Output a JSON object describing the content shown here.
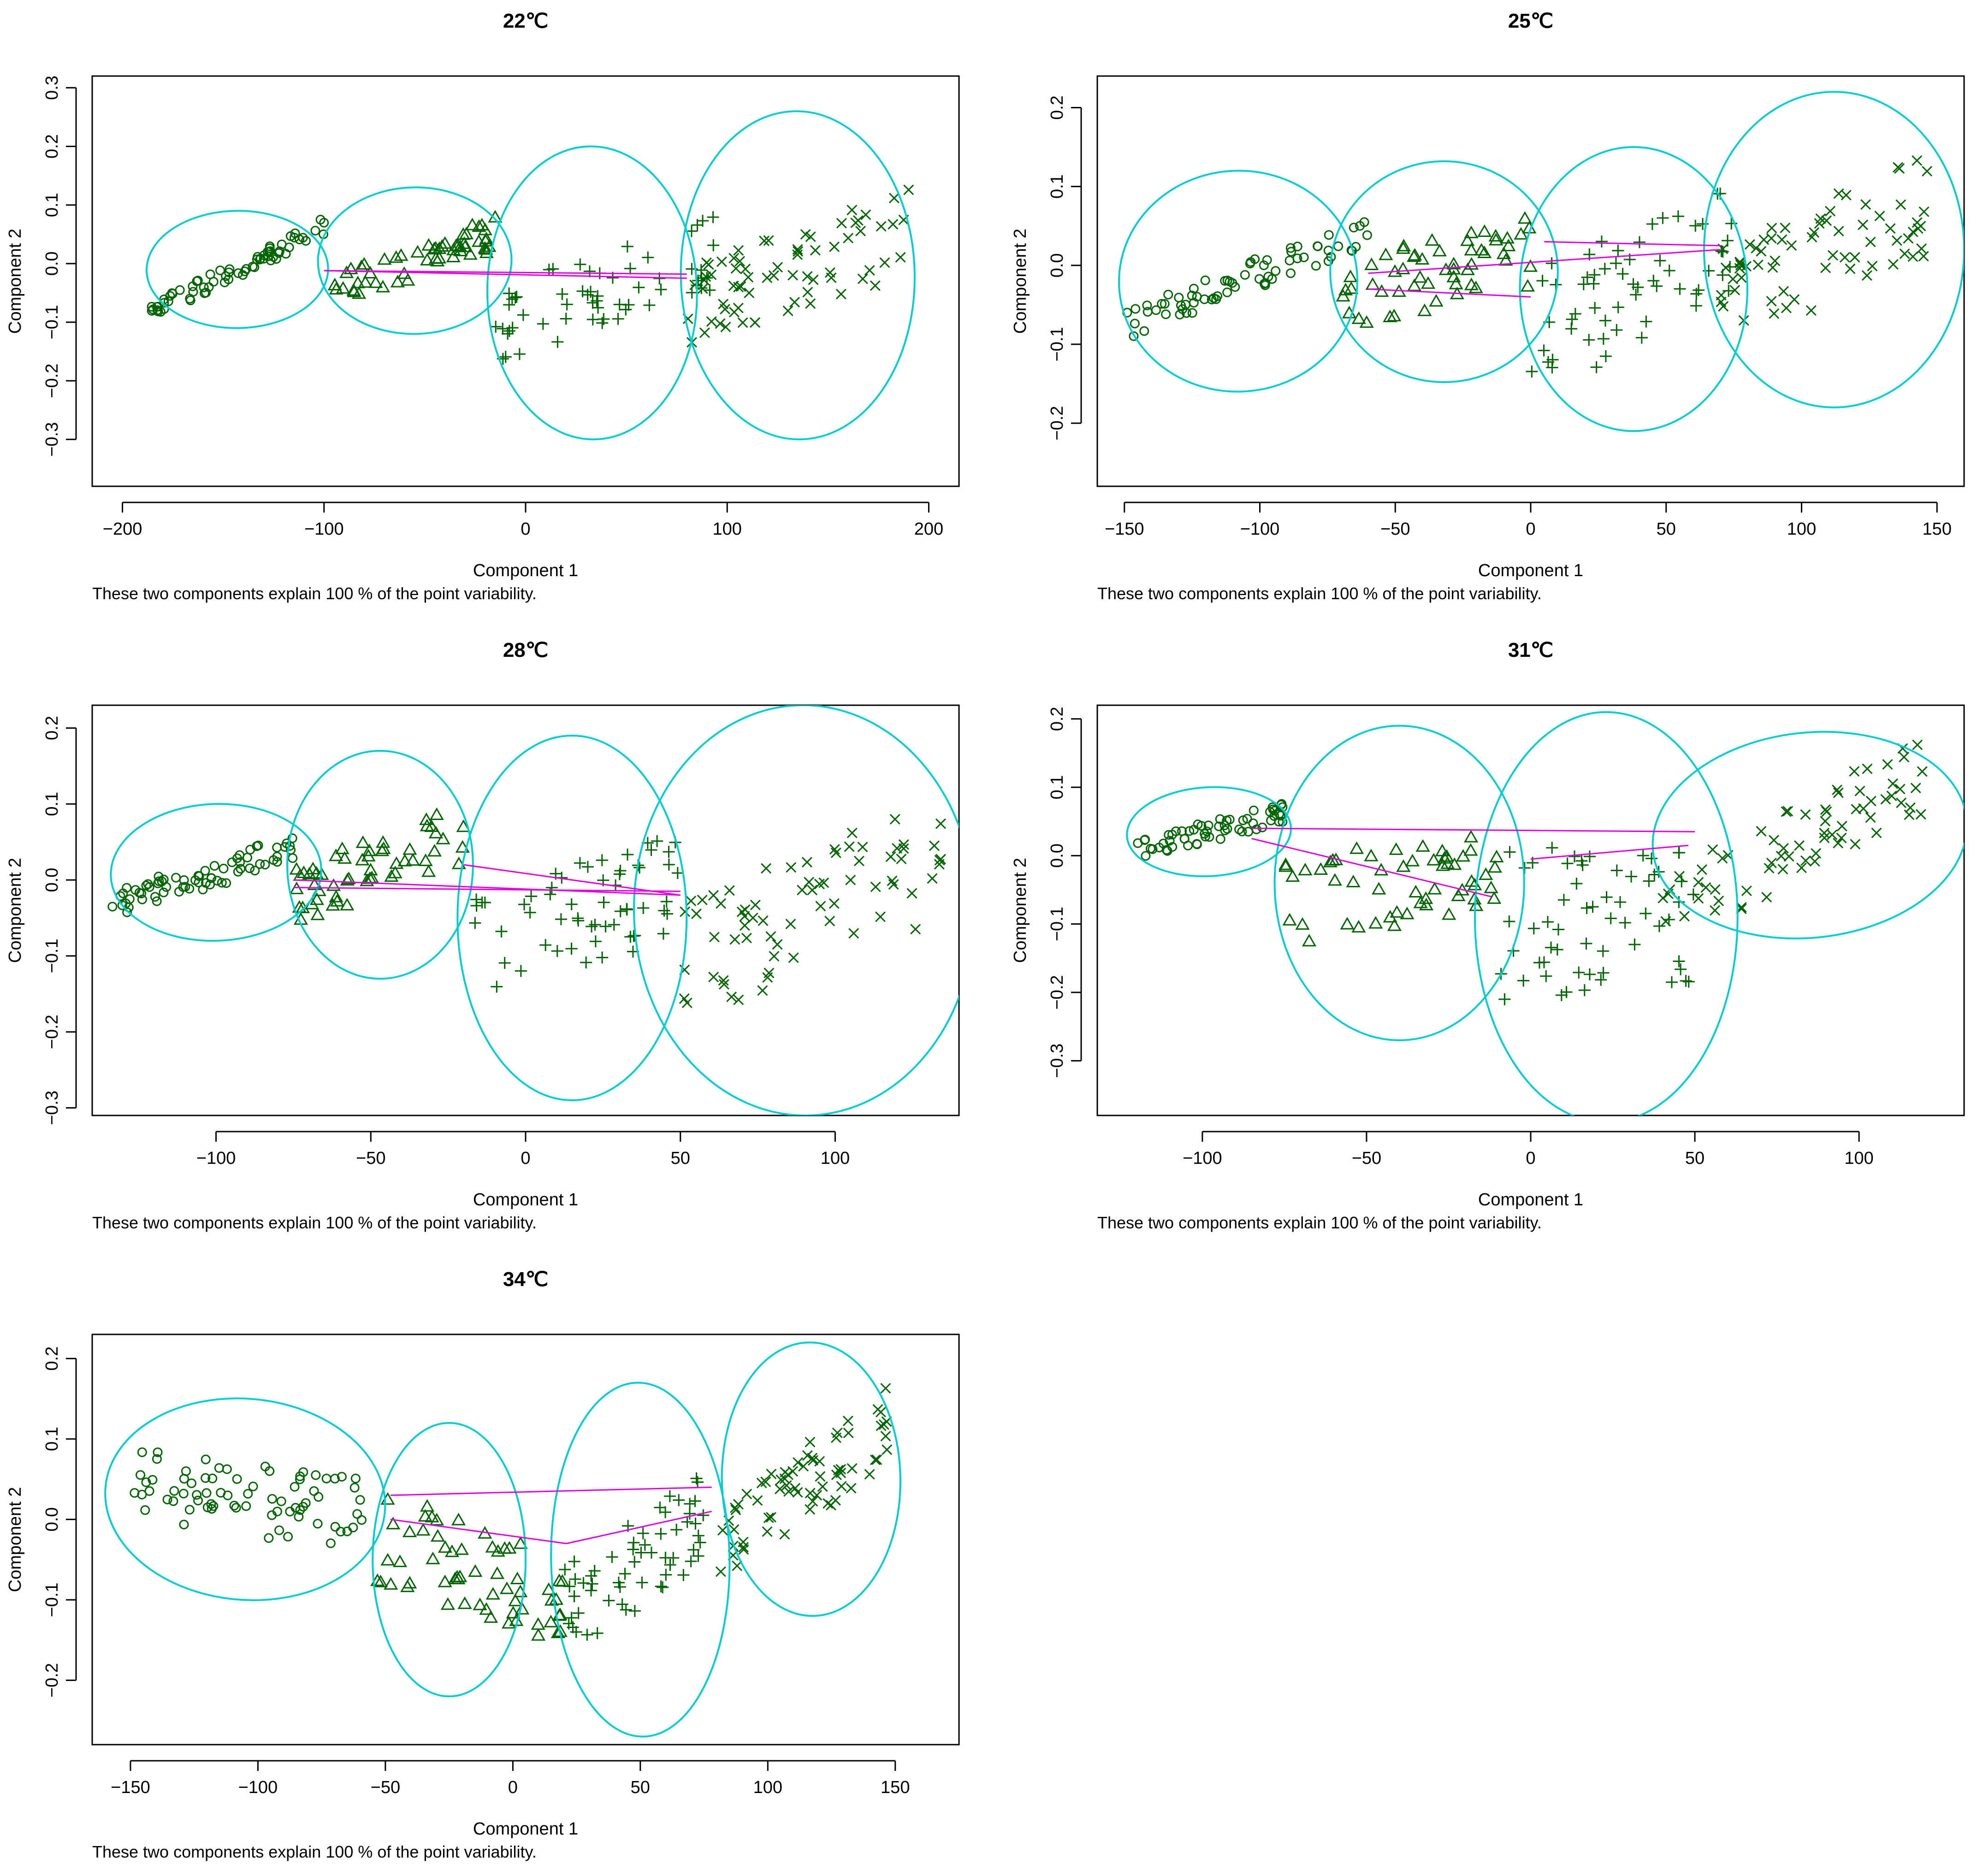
{
  "colors": {
    "points": "#006400",
    "ellipses": "#00CED1",
    "connectors": "#E000E0",
    "axes": "#000000"
  },
  "chart_data": [
    {
      "type": "scatter",
      "title": "22℃",
      "xlabel": "Component 1",
      "ylabel": "Component 2",
      "footnote": "These two components explain 100 % of the point variability.",
      "xlim": [
        -215,
        215
      ],
      "ylim": [
        -0.38,
        0.32
      ],
      "xticks": [
        -200,
        -100,
        0,
        100,
        200
      ],
      "yticks": [
        -0.3,
        -0.2,
        -0.1,
        0.0,
        0.1,
        0.2,
        0.3
      ],
      "clusters": [
        {
          "symbol": "circle",
          "cx": -143,
          "cy": -0.01,
          "rx": 45,
          "ry": 0.1,
          "angle": 0.6,
          "n": 70,
          "xr": [
            -188,
            -100
          ],
          "slope": 0.0017,
          "spread": 0.03
        },
        {
          "symbol": "triangle",
          "cx": -55,
          "cy": 0.005,
          "rx": 48,
          "ry": 0.125,
          "angle": 1,
          "n": 55,
          "xr": [
            -95,
            -15
          ],
          "slope": 0.0012,
          "spread": 0.06
        },
        {
          "symbol": "plus",
          "cx": 33,
          "cy": -0.05,
          "rx": 52,
          "ry": 0.25,
          "angle": 1,
          "n": 60,
          "xr": [
            -15,
            95
          ],
          "slope": 0.0011,
          "spread": 0.13
        },
        {
          "symbol": "cross",
          "cx": 135,
          "cy": -0.02,
          "rx": 58,
          "ry": 0.28,
          "angle": 1,
          "n": 70,
          "xr": [
            80,
            190
          ],
          "slope": 0.0012,
          "spread": 0.16
        }
      ],
      "connectors": [
        [
          -100,
          -0.012,
          80,
          -0.018
        ],
        [
          -100,
          -0.012,
          80,
          -0.025
        ]
      ]
    },
    {
      "type": "scatter",
      "title": "25℃",
      "xlabel": "Component 1",
      "ylabel": "Component 2",
      "footnote": "These two components explain 100 % of the point variability.",
      "xlim": [
        -160,
        160
      ],
      "ylim": [
        -0.28,
        0.24
      ],
      "xticks": [
        -150,
        -100,
        -50,
        0,
        50,
        100,
        150
      ],
      "yticks": [
        -0.2,
        -0.1,
        0.0,
        0.1,
        0.2
      ],
      "clusters": [
        {
          "symbol": "circle",
          "cx": -108,
          "cy": -0.02,
          "rx": 44,
          "ry": 0.14,
          "angle": 2,
          "n": 70,
          "xr": [
            -150,
            -60
          ],
          "slope": 0.0013,
          "spread": 0.04
        },
        {
          "symbol": "triangle",
          "cx": -32,
          "cy": -0.008,
          "rx": 42,
          "ry": 0.14,
          "angle": 0,
          "n": 55,
          "xr": [
            -70,
            0
          ],
          "slope": 0.0008,
          "spread": 0.09
        },
        {
          "symbol": "plus",
          "cx": 38,
          "cy": -0.03,
          "rx": 42,
          "ry": 0.18,
          "angle": 0,
          "n": 60,
          "xr": [
            0,
            75
          ],
          "slope": 0.0015,
          "spread": 0.16
        },
        {
          "symbol": "cross",
          "cx": 112,
          "cy": 0.02,
          "rx": 48,
          "ry": 0.2,
          "angle": 0,
          "n": 70,
          "xr": [
            70,
            150
          ],
          "slope": 0.0015,
          "spread": 0.14
        }
      ],
      "connectors": [
        [
          -60,
          -0.01,
          70,
          0.02
        ],
        [
          -60,
          -0.03,
          0,
          -0.04
        ],
        [
          5,
          0.03,
          70,
          0.025
        ]
      ]
    },
    {
      "type": "scatter",
      "title": "28℃",
      "xlabel": "Component 1",
      "ylabel": "Component 2",
      "footnote": "These two components explain 100 % of the point variability.",
      "xlim": [
        -140,
        140
      ],
      "ylim": [
        -0.31,
        0.23
      ],
      "xticks": [
        -100,
        -50,
        0,
        50,
        100
      ],
      "yticks": [
        -0.3,
        -0.2,
        -0.1,
        0.0,
        0.1,
        0.2
      ],
      "clusters": [
        {
          "symbol": "circle",
          "cx": -100,
          "cy": 0.01,
          "rx": 34,
          "ry": 0.09,
          "angle": 2,
          "n": 70,
          "xr": [
            -135,
            -75
          ],
          "slope": 0.0012,
          "spread": 0.04
        },
        {
          "symbol": "triangle",
          "cx": -47,
          "cy": 0.02,
          "rx": 30,
          "ry": 0.15,
          "angle": 0,
          "n": 55,
          "xr": [
            -75,
            -20
          ],
          "slope": 0.0015,
          "spread": 0.08
        },
        {
          "symbol": "plus",
          "cx": 15,
          "cy": -0.05,
          "rx": 37,
          "ry": 0.24,
          "angle": 0,
          "n": 60,
          "xr": [
            -20,
            50
          ],
          "slope": 0.0012,
          "spread": 0.14
        },
        {
          "symbol": "cross",
          "cx": 90,
          "cy": -0.04,
          "rx": 55,
          "ry": 0.27,
          "angle": 1,
          "n": 70,
          "xr": [
            50,
            135
          ],
          "slope": 0.0016,
          "spread": 0.17
        }
      ],
      "connectors": [
        [
          -75,
          -0.01,
          50,
          -0.015
        ],
        [
          -75,
          0.0,
          50,
          -0.02
        ],
        [
          -20,
          0.02,
          50,
          -0.02
        ]
      ]
    },
    {
      "type": "scatter",
      "title": "31℃",
      "xlabel": "Component 1",
      "ylabel": "Component 2",
      "footnote": "These two components explain 100 % of the point variability.",
      "xlim": [
        -132,
        132
      ],
      "ylim": [
        -0.38,
        0.22
      ],
      "xticks": [
        -100,
        -50,
        0,
        50,
        100
      ],
      "yticks": [
        -0.3,
        -0.2,
        -0.1,
        0.0,
        0.1,
        0.2
      ],
      "clusters": [
        {
          "symbol": "circle",
          "cx": -98,
          "cy": 0.035,
          "rx": 25,
          "ry": 0.065,
          "angle": 3,
          "n": 60,
          "xr": [
            -120,
            -75
          ],
          "slope": 0.0012,
          "spread": 0.03
        },
        {
          "symbol": "triangle",
          "cx": -40,
          "cy": -0.04,
          "rx": 38,
          "ry": 0.23,
          "angle": 0,
          "n": 55,
          "xr": [
            -75,
            -10
          ],
          "slope": 0.0008,
          "spread": 0.13
        },
        {
          "symbol": "plus",
          "cx": 23,
          "cy": -0.09,
          "rx": 40,
          "ry": 0.3,
          "angle": 0,
          "n": 60,
          "xr": [
            -10,
            50
          ],
          "slope": 0.0005,
          "spread": 0.22
        },
        {
          "symbol": "cross",
          "cx": 85,
          "cy": 0.03,
          "rx": 48,
          "ry": 0.15,
          "angle": 6,
          "n": 70,
          "xr": [
            40,
            120
          ],
          "slope": 0.0025,
          "spread": 0.12
        }
      ],
      "connectors": [
        [
          -85,
          0.04,
          50,
          0.035
        ],
        [
          -85,
          0.025,
          -12,
          -0.06
        ],
        [
          0,
          -0.005,
          48,
          0.015
        ]
      ]
    },
    {
      "type": "scatter",
      "title": "34℃",
      "xlabel": "Component 1",
      "ylabel": "Component 2",
      "footnote": "These two components explain 100 % of the point variability.",
      "xlim": [
        -165,
        175
      ],
      "ylim": [
        -0.28,
        0.23
      ],
      "xticks": [
        -150,
        -100,
        -50,
        0,
        50,
        100,
        150
      ],
      "yticks": [
        -0.2,
        -0.1,
        0.0,
        0.1,
        0.2
      ],
      "clusters": [
        {
          "symbol": "circle",
          "cx": -105,
          "cy": 0.025,
          "rx": 55,
          "ry": 0.125,
          "angle": -5,
          "n": 75,
          "xr": [
            -150,
            -58
          ],
          "slope": -0.0004,
          "spread": 0.09
        },
        {
          "symbol": "triangle",
          "cx": -25,
          "cy": -0.05,
          "rx": 30,
          "ry": 0.17,
          "angle": 0,
          "n": 60,
          "xr": [
            -55,
            20
          ],
          "slope": -0.001,
          "spread": 0.12
        },
        {
          "symbol": "plus",
          "cx": 50,
          "cy": -0.05,
          "rx": 35,
          "ry": 0.22,
          "angle": 1,
          "n": 60,
          "xr": [
            20,
            80
          ],
          "slope": 0.0022,
          "spread": 0.12
        },
        {
          "symbol": "cross",
          "cx": 117,
          "cy": 0.05,
          "rx": 35,
          "ry": 0.17,
          "angle": 1,
          "n": 70,
          "xr": [
            80,
            150
          ],
          "slope": 0.0022,
          "spread": 0.1
        }
      ],
      "connectors": [
        [
          -48,
          0.03,
          78,
          0.04
        ],
        [
          -48,
          0.0,
          21,
          -0.03
        ],
        [
          21,
          -0.03,
          78,
          0.01
        ]
      ]
    }
  ]
}
